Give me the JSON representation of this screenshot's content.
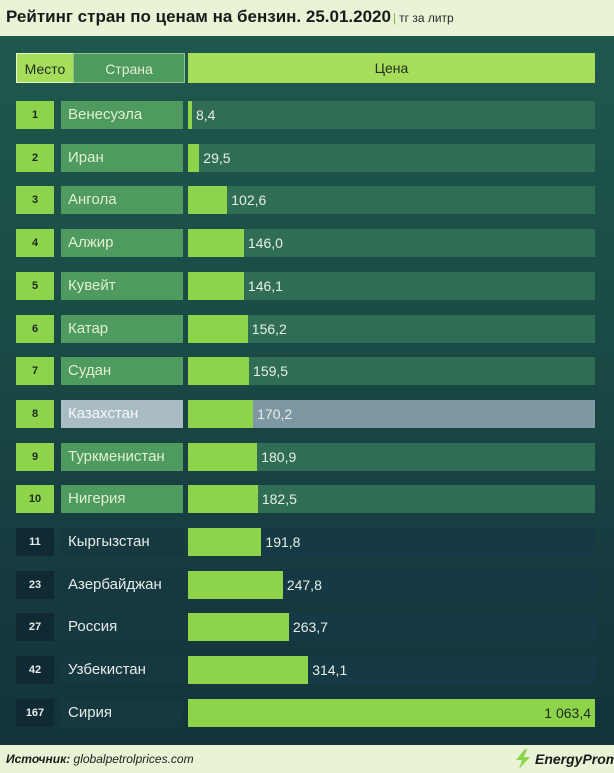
{
  "header": {
    "title": "Рейтинг стран по ценам на бензин. 25.01.2020",
    "unit": "тг за литр",
    "unit_separator": "|"
  },
  "columns": {
    "place": "Место",
    "country": "Страна",
    "price": "Цена"
  },
  "footer": {
    "source_label": "Источник:",
    "source_value": "globalpetrolprices.com",
    "brand": "EnergyProm"
  },
  "colors": {
    "bar": "#8dd44a",
    "row_top_rank": "#8dd44a",
    "row_top_country": "#4f9a5e",
    "row_top_track": "#2f6d55",
    "row_highlight_country": "#a9bcc4",
    "row_highlight_track": "#7d97a3",
    "row_bottom_rank": "#0f2a33",
    "row_bottom_country": "#16383f",
    "row_bottom_track": "#163a45"
  },
  "chart_data": {
    "type": "bar",
    "orientation": "horizontal",
    "title": "Рейтинг стран по ценам на бензин. 25.01.2020",
    "value_unit": "тг за литр",
    "xlim": [
      0,
      1063.4
    ],
    "highlight": "Казахстан",
    "rows": [
      {
        "rank": "1",
        "country": "Венесуэла",
        "value": 8.4,
        "label": "8,4"
      },
      {
        "rank": "2",
        "country": "Иран",
        "value": 29.5,
        "label": "29,5"
      },
      {
        "rank": "3",
        "country": "Ангола",
        "value": 102.6,
        "label": "102,6"
      },
      {
        "rank": "4",
        "country": "Алжир",
        "value": 146.0,
        "label": "146,0"
      },
      {
        "rank": "5",
        "country": "Кувейт",
        "value": 146.1,
        "label": "146,1"
      },
      {
        "rank": "6",
        "country": "Катар",
        "value": 156.2,
        "label": "156,2"
      },
      {
        "rank": "7",
        "country": "Судан",
        "value": 159.5,
        "label": "159,5"
      },
      {
        "rank": "8",
        "country": "Казахстан",
        "value": 170.2,
        "label": "170,2"
      },
      {
        "rank": "9",
        "country": "Туркменистан",
        "value": 180.9,
        "label": "180,9"
      },
      {
        "rank": "10",
        "country": "Нигерия",
        "value": 182.5,
        "label": "182,5"
      },
      {
        "rank": "11",
        "country": "Кыргызстан",
        "value": 191.8,
        "label": "191,8"
      },
      {
        "rank": "23",
        "country": "Азербайджан",
        "value": 247.8,
        "label": "247,8"
      },
      {
        "rank": "27",
        "country": "Россия",
        "value": 263.7,
        "label": "263,7"
      },
      {
        "rank": "42",
        "country": "Узбекистан",
        "value": 314.1,
        "label": "314,1"
      },
      {
        "rank": "167",
        "country": "Сирия",
        "value": 1063.4,
        "label": "1 063,4"
      }
    ]
  }
}
